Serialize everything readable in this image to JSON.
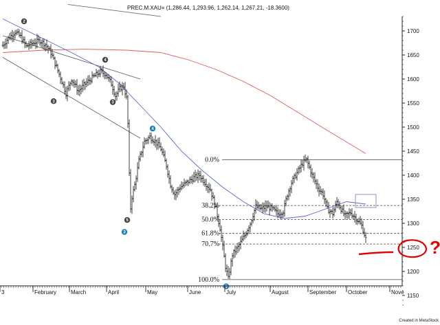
{
  "chart_data": {
    "type": "ohlc",
    "title": "PREC.M.XAU= (1,286.44, 1,293.96, 1,262.14, 1,267.21, -18.3600)",
    "credit": "Created in MetaStock",
    "y_axis": {
      "ylim": [
        1120,
        1740
      ],
      "ticks": [
        1150,
        1200,
        1250,
        1300,
        1350,
        1400,
        1450,
        1500,
        1550,
        1600,
        1650,
        1700
      ]
    },
    "x_axis": {
      "months": [
        "3",
        "February",
        "March",
        "April",
        "May",
        "June",
        "July",
        "August",
        "September",
        "October",
        "Nove"
      ]
    },
    "price_path": [
      [
        0,
        1670
      ],
      [
        8,
        1685
      ],
      [
        18,
        1698
      ],
      [
        26,
        1688
      ],
      [
        34,
        1668
      ],
      [
        44,
        1675
      ],
      [
        54,
        1680
      ],
      [
        62,
        1672
      ],
      [
        70,
        1655
      ],
      [
        78,
        1625
      ],
      [
        86,
        1595
      ],
      [
        92,
        1570
      ],
      [
        100,
        1600
      ],
      [
        110,
        1575
      ],
      [
        120,
        1590
      ],
      [
        132,
        1605
      ],
      [
        142,
        1615
      ],
      [
        150,
        1610
      ],
      [
        158,
        1590
      ],
      [
        164,
        1565
      ],
      [
        170,
        1580
      ],
      [
        176,
        1585
      ],
      [
        180,
        1560
      ],
      [
        183,
        1480
      ],
      [
        185,
        1320
      ],
      [
        188,
        1355
      ],
      [
        192,
        1380
      ],
      [
        198,
        1430
      ],
      [
        206,
        1470
      ],
      [
        214,
        1480
      ],
      [
        222,
        1470
      ],
      [
        230,
        1455
      ],
      [
        238,
        1420
      ],
      [
        244,
        1380
      ],
      [
        250,
        1360
      ],
      [
        258,
        1375
      ],
      [
        268,
        1385
      ],
      [
        278,
        1395
      ],
      [
        286,
        1400
      ],
      [
        294,
        1385
      ],
      [
        302,
        1370
      ],
      [
        310,
        1330
      ],
      [
        316,
        1290
      ],
      [
        320,
        1250
      ],
      [
        324,
        1210
      ],
      [
        328,
        1185
      ],
      [
        334,
        1235
      ],
      [
        342,
        1250
      ],
      [
        352,
        1275
      ],
      [
        360,
        1300
      ],
      [
        368,
        1335
      ],
      [
        376,
        1330
      ],
      [
        384,
        1335
      ],
      [
        392,
        1330
      ],
      [
        400,
        1320
      ],
      [
        408,
        1325
      ],
      [
        414,
        1360
      ],
      [
        420,
        1385
      ],
      [
        428,
        1405
      ],
      [
        436,
        1425
      ],
      [
        442,
        1432
      ],
      [
        450,
        1400
      ],
      [
        458,
        1375
      ],
      [
        466,
        1360
      ],
      [
        472,
        1330
      ],
      [
        480,
        1320
      ],
      [
        486,
        1345
      ],
      [
        492,
        1330
      ],
      [
        498,
        1315
      ],
      [
        506,
        1322
      ],
      [
        514,
        1310
      ],
      [
        522,
        1295
      ],
      [
        528,
        1268
      ]
    ],
    "ma_blue": [
      [
        0,
        1725
      ],
      [
        50,
        1690
      ],
      [
        100,
        1655
      ],
      [
        140,
        1625
      ],
      [
        170,
        1590
      ],
      [
        200,
        1545
      ],
      [
        230,
        1500
      ],
      [
        260,
        1450
      ],
      [
        290,
        1410
      ],
      [
        320,
        1375
      ],
      [
        350,
        1345
      ],
      [
        380,
        1320
      ],
      [
        410,
        1310
      ],
      [
        440,
        1315
      ],
      [
        470,
        1330
      ],
      [
        500,
        1345
      ],
      [
        528,
        1340
      ]
    ],
    "ma_red": [
      [
        0,
        1655
      ],
      [
        60,
        1660
      ],
      [
        120,
        1662
      ],
      [
        180,
        1660
      ],
      [
        230,
        1655
      ],
      [
        270,
        1640
      ],
      [
        310,
        1620
      ],
      [
        350,
        1595
      ],
      [
        390,
        1565
      ],
      [
        430,
        1530
      ],
      [
        470,
        1495
      ],
      [
        528,
        1445
      ]
    ],
    "trendlines": [
      {
        "from": [
          0,
          1690
        ],
        "to": [
          200,
          1600
        ]
      },
      {
        "from": [
          0,
          1645
        ],
        "to": [
          200,
          1477
        ]
      },
      {
        "from": [
          95,
          1755
        ],
        "to": [
          230,
          1730
        ]
      }
    ],
    "fibonacci": {
      "levels": [
        {
          "label": "0.0%",
          "value": 1432
        },
        {
          "label": "38.2%",
          "value": 1337
        },
        {
          "label": "50.0%",
          "value": 1308
        },
        {
          "label": "61.8%",
          "value": 1279
        },
        {
          "label": "70.7%",
          "value": 1257
        },
        {
          "label": "100.0%",
          "value": 1183
        }
      ]
    },
    "waves": [
      {
        "label": "2",
        "color": "#444444",
        "at": [
          35,
          1720
        ]
      },
      {
        "label": "3",
        "color": "#444444",
        "at": [
          78,
          1554
        ]
      },
      {
        "label": "4",
        "color": "#444444",
        "at": [
          153,
          1640
        ]
      },
      {
        "label": "3",
        "color": "#444444",
        "at": [
          164,
          1552
        ]
      },
      {
        "label": "4",
        "color": "#1b7fc2",
        "at": [
          222,
          1497
        ]
      },
      {
        "label": "5",
        "color": "#444444",
        "at": [
          185,
          1307
        ]
      },
      {
        "label": "3",
        "color": "#1b7fc2",
        "at": [
          181,
          1282
        ]
      },
      {
        "label": "5",
        "color": "#1b7fc2",
        "at": [
          329,
          1169
        ]
      }
    ],
    "annotation": {
      "text": "?",
      "color": "#e00000",
      "target": 1250
    }
  }
}
